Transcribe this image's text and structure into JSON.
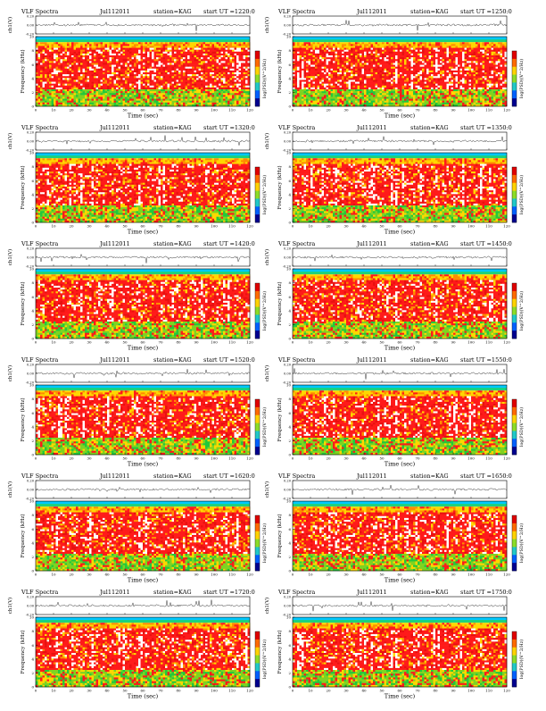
{
  "chart_data": [
    {
      "type": "heatmap",
      "title": "VLF Spectra",
      "date": "Jul112011",
      "station": "station=KAG",
      "start_ut": "start UT =1220:0",
      "waveform": {
        "ylabel": "ch1(V)",
        "ylim": [
          -0.2,
          0.2
        ],
        "yticks": [
          "0.20",
          "0.00",
          "-0.20"
        ]
      },
      "xlabel": "Time (sec)",
      "ylabel": "Frequency (kHz)",
      "xlim": [
        0,
        120
      ],
      "ylim": [
        0,
        10
      ],
      "xticks": [
        "0",
        "10",
        "20",
        "30",
        "40",
        "50",
        "60",
        "70",
        "80",
        "90",
        "100",
        "110",
        "120"
      ],
      "yticks": [
        "0",
        "2",
        "4",
        "6",
        "8",
        "10"
      ],
      "colorbar": {
        "label": "log(PSD)(V^2/Hz)"
      }
    },
    {
      "type": "heatmap",
      "title": "VLF Spectra",
      "date": "Jul112011",
      "station": "station=KAG",
      "start_ut": "start UT =1250:0",
      "waveform": {
        "ylabel": "ch1(V)",
        "ylim": [
          -0.2,
          0.2
        ],
        "yticks": [
          "0.20",
          "0.00",
          "-0.20"
        ]
      },
      "xlabel": "Time (sec)",
      "ylabel": "Frequency (kHz)",
      "xlim": [
        0,
        120
      ],
      "ylim": [
        0,
        10
      ],
      "xticks": [
        "0",
        "10",
        "20",
        "30",
        "40",
        "50",
        "60",
        "70",
        "80",
        "90",
        "100",
        "110",
        "120"
      ],
      "yticks": [
        "0",
        "2",
        "4",
        "6",
        "8",
        "10"
      ],
      "colorbar": {
        "label": "log(PSD)(V^2/Hz)"
      }
    },
    {
      "type": "heatmap",
      "title": "VLF Spectra",
      "date": "Jul112011",
      "station": "station=KAG",
      "start_ut": "start UT =1320:0",
      "waveform": {
        "ylabel": "ch1(V)",
        "ylim": [
          -0.2,
          0.2
        ],
        "yticks": [
          "0.20",
          "0.00",
          "-0.20"
        ]
      },
      "xlabel": "Time (sec)",
      "ylabel": "Frequency (kHz)",
      "xlim": [
        0,
        120
      ],
      "ylim": [
        0,
        10
      ],
      "xticks": [
        "0",
        "10",
        "20",
        "30",
        "40",
        "50",
        "60",
        "70",
        "80",
        "90",
        "100",
        "110",
        "120"
      ],
      "yticks": [
        "0",
        "2",
        "4",
        "6",
        "8",
        "10"
      ],
      "colorbar": {
        "label": "log(PSD)(V^2/Hz)"
      }
    },
    {
      "type": "heatmap",
      "title": "VLF Spectra",
      "date": "Jul112011",
      "station": "station=KAG",
      "start_ut": "start UT =1350:0",
      "waveform": {
        "ylabel": "ch1(V)",
        "ylim": [
          -0.2,
          0.2
        ],
        "yticks": [
          "0.20",
          "0.00",
          "-0.20"
        ]
      },
      "xlabel": "Time (sec)",
      "ylabel": "Frequency (kHz)",
      "xlim": [
        0,
        120
      ],
      "ylim": [
        0,
        10
      ],
      "xticks": [
        "0",
        "10",
        "20",
        "30",
        "40",
        "50",
        "60",
        "70",
        "80",
        "90",
        "100",
        "110",
        "120"
      ],
      "yticks": [
        "0",
        "2",
        "4",
        "6",
        "8",
        "10"
      ],
      "colorbar": {
        "label": "log(PSD)(V^2/Hz)"
      }
    },
    {
      "type": "heatmap",
      "title": "VLF Spectra",
      "date": "Jul112011",
      "station": "station=KAG",
      "start_ut": "start UT =1420:0",
      "waveform": {
        "ylabel": "ch1(V)",
        "ylim": [
          -0.2,
          0.2
        ],
        "yticks": [
          "0.20",
          "0.00",
          "-0.20"
        ]
      },
      "xlabel": "Time (sec)",
      "ylabel": "Frequency (kHz)",
      "xlim": [
        0,
        120
      ],
      "ylim": [
        0,
        10
      ],
      "xticks": [
        "0",
        "10",
        "20",
        "30",
        "40",
        "50",
        "60",
        "70",
        "80",
        "90",
        "100",
        "110",
        "120"
      ],
      "yticks": [
        "0",
        "2",
        "4",
        "6",
        "8",
        "10"
      ],
      "colorbar": {
        "label": "log(PSD)(V^2/Hz)"
      }
    },
    {
      "type": "heatmap",
      "title": "VLF Spectra",
      "date": "Jul112011",
      "station": "station=KAG",
      "start_ut": "start UT =1450:0",
      "waveform": {
        "ylabel": "ch1(V)",
        "ylim": [
          -0.2,
          0.2
        ],
        "yticks": [
          "0.20",
          "0.00",
          "-0.20"
        ]
      },
      "xlabel": "Time (sec)",
      "ylabel": "Frequency (kHz)",
      "xlim": [
        0,
        120
      ],
      "ylim": [
        0,
        10
      ],
      "xticks": [
        "0",
        "10",
        "20",
        "30",
        "40",
        "50",
        "60",
        "70",
        "80",
        "90",
        "100",
        "110",
        "120"
      ],
      "yticks": [
        "0",
        "2",
        "4",
        "6",
        "8",
        "10"
      ],
      "colorbar": {
        "label": "log(PSD)(V^2/Hz)"
      }
    },
    {
      "type": "heatmap",
      "title": "VLF Spectra",
      "date": "Jul112011",
      "station": "station=KAG",
      "start_ut": "start UT =1520:0",
      "waveform": {
        "ylabel": "ch1(V)",
        "ylim": [
          -0.2,
          0.2
        ],
        "yticks": [
          "0.20",
          "0.00",
          "-0.20"
        ]
      },
      "xlabel": "Time (sec)",
      "ylabel": "Frequency (kHz)",
      "xlim": [
        0,
        120
      ],
      "ylim": [
        0,
        10
      ],
      "xticks": [
        "0",
        "10",
        "20",
        "30",
        "40",
        "50",
        "60",
        "70",
        "80",
        "90",
        "100",
        "110",
        "120"
      ],
      "yticks": [
        "0",
        "2",
        "4",
        "6",
        "8",
        "10"
      ],
      "colorbar": {
        "label": "log(PSD)(V^2/Hz)"
      }
    },
    {
      "type": "heatmap",
      "title": "VLF Spectra",
      "date": "Jul112011",
      "station": "station=KAG",
      "start_ut": "start UT =1550:0",
      "waveform": {
        "ylabel": "ch1(V)",
        "ylim": [
          -0.2,
          0.2
        ],
        "yticks": [
          "0.20",
          "0.00",
          "-0.20"
        ]
      },
      "xlabel": "Time (sec)",
      "ylabel": "Frequency (kHz)",
      "xlim": [
        0,
        120
      ],
      "ylim": [
        0,
        10
      ],
      "xticks": [
        "0",
        "10",
        "20",
        "30",
        "40",
        "50",
        "60",
        "70",
        "80",
        "90",
        "100",
        "110",
        "120"
      ],
      "yticks": [
        "0",
        "2",
        "4",
        "6",
        "8",
        "10"
      ],
      "colorbar": {
        "label": "log(PSD)(V^2/Hz)"
      }
    },
    {
      "type": "heatmap",
      "title": "VLF Spectra",
      "date": "Jul112011",
      "station": "station=KAG",
      "start_ut": "start UT =1620:0",
      "waveform": {
        "ylabel": "ch1(V)",
        "ylim": [
          -0.2,
          0.2
        ],
        "yticks": [
          "0.20",
          "0.00",
          "-0.20"
        ]
      },
      "xlabel": "Time (sec)",
      "ylabel": "Frequency (kHz)",
      "xlim": [
        0,
        120
      ],
      "ylim": [
        0,
        10
      ],
      "xticks": [
        "0",
        "10",
        "20",
        "30",
        "40",
        "50",
        "60",
        "70",
        "80",
        "90",
        "100",
        "110",
        "120"
      ],
      "yticks": [
        "0",
        "2",
        "4",
        "6",
        "8",
        "10"
      ],
      "colorbar": {
        "label": "log(PSD)(V^2/Hz)"
      }
    },
    {
      "type": "heatmap",
      "title": "VLF Spectra",
      "date": "Jul112011",
      "station": "station=KAG",
      "start_ut": "start UT =1650:0",
      "waveform": {
        "ylabel": "ch1(V)",
        "ylim": [
          -0.2,
          0.2
        ],
        "yticks": [
          "0.20",
          "0.00",
          "-0.20"
        ]
      },
      "xlabel": "Time (sec)",
      "ylabel": "Frequency (kHz)",
      "xlim": [
        0,
        120
      ],
      "ylim": [
        0,
        10
      ],
      "xticks": [
        "0",
        "10",
        "20",
        "30",
        "40",
        "50",
        "60",
        "70",
        "80",
        "90",
        "100",
        "110",
        "120"
      ],
      "yticks": [
        "0",
        "2",
        "4",
        "6",
        "8",
        "10"
      ],
      "colorbar": {
        "label": "log(PSD)(V^2/Hz)"
      }
    },
    {
      "type": "heatmap",
      "title": "VLF Spectra",
      "date": "Jul112011",
      "station": "station=KAG",
      "start_ut": "start UT =1720:0",
      "waveform": {
        "ylabel": "ch1(V)",
        "ylim": [
          -0.2,
          0.2
        ],
        "yticks": [
          "0.20",
          "0.00",
          "-0.20"
        ]
      },
      "xlabel": "Time (sec)",
      "ylabel": "Frequency (kHz)",
      "xlim": [
        0,
        120
      ],
      "ylim": [
        0,
        10
      ],
      "xticks": [
        "0",
        "10",
        "20",
        "30",
        "40",
        "50",
        "60",
        "70",
        "80",
        "90",
        "100",
        "110",
        "120"
      ],
      "yticks": [
        "0",
        "2",
        "4",
        "6",
        "8",
        "10"
      ],
      "colorbar": {
        "label": "log(PSD)(V^2/Hz)"
      }
    },
    {
      "type": "heatmap",
      "title": "VLF Spectra",
      "date": "Jul112011",
      "station": "station=KAG",
      "start_ut": "start UT =1750:0",
      "waveform": {
        "ylabel": "ch1(V)",
        "ylim": [
          -0.2,
          0.2
        ],
        "yticks": [
          "0.20",
          "0.00",
          "-0.20"
        ]
      },
      "xlabel": "Time (sec)",
      "ylabel": "Frequency (kHz)",
      "xlim": [
        0,
        120
      ],
      "ylim": [
        0,
        10
      ],
      "xticks": [
        "0",
        "10",
        "20",
        "30",
        "40",
        "50",
        "60",
        "70",
        "80",
        "90",
        "100",
        "110",
        "120"
      ],
      "yticks": [
        "0",
        "2",
        "4",
        "6",
        "8",
        "10"
      ],
      "colorbar": {
        "label": "log(PSD)(V^2/Hz)"
      }
    }
  ],
  "colors": {
    "spectrogram_palette": [
      "#ffffff",
      "#ff1a1a",
      "#e81010",
      "#ff8c00",
      "#ffd700",
      "#f0f028",
      "#7ed321",
      "#22c83c",
      "#00c8b4",
      "#00c8ff"
    ],
    "colorbar_palette": [
      "#e00000",
      "#ff6a00",
      "#ffd200",
      "#8cdc28",
      "#20c8c8",
      "#0060ff",
      "#000090"
    ],
    "axis": "#000000",
    "waveform_line": "#222222"
  }
}
